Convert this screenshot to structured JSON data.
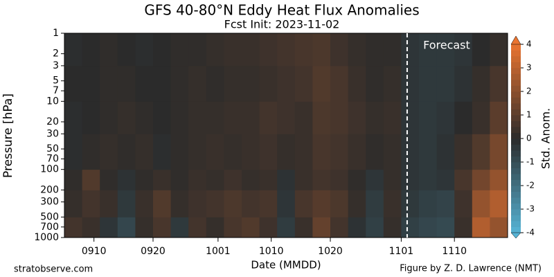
{
  "chart_data": {
    "type": "contourf",
    "title": "GFS 40-80°N Eddy Heat Flux Anomalies",
    "subtitle": "Fcst Init: 2023-11-02",
    "xlabel": "Date (MMDD)",
    "ylabel": "Pressure [hPa]",
    "x": [
      "0905",
      "0908",
      "0911",
      "0914",
      "0917",
      "0920",
      "0923",
      "0926",
      "0929",
      "1002",
      "1005",
      "1008",
      "1011",
      "1014",
      "1017",
      "1020",
      "1023",
      "1026",
      "1029",
      "1101",
      "1104",
      "1107",
      "1110",
      "1113",
      "1116"
    ],
    "xlim": [
      "0905",
      "1119"
    ],
    "xticks": [
      "0910",
      "0920",
      "1001",
      "1010",
      "1020",
      "1101",
      "1110"
    ],
    "levels": [
      1000,
      500,
      200,
      100,
      30,
      10,
      3,
      1
    ],
    "ylim": [
      1000,
      1
    ],
    "yscale": "log",
    "yticks": [
      1,
      2,
      3,
      5,
      7,
      10,
      20,
      30,
      50,
      70,
      100,
      200,
      300,
      500,
      700,
      1000
    ],
    "z": [
      [
        0.5,
        0.3,
        -0.3,
        -0.8,
        0.2,
        0.6,
        -0.4,
        0.5,
        0.2,
        0.6,
        0.8,
        0.4,
        -0.5,
        0.3,
        1.2,
        0.5,
        -0.2,
        -0.6,
        0.2,
        -0.6,
        -0.8,
        -0.9,
        0.3,
        2.8,
        2.2
      ],
      [
        0.2,
        0.5,
        0.3,
        -0.4,
        0.3,
        0.8,
        0.2,
        0.4,
        0.5,
        0.7,
        0.5,
        0.6,
        -0.3,
        0.6,
        0.9,
        0.7,
        0.2,
        -0.5,
        0.3,
        -0.4,
        -0.6,
        -0.7,
        0.4,
        2.2,
        2.8
      ],
      [
        0.1,
        0.8,
        0.1,
        -0.2,
        0.1,
        0.3,
        0.1,
        0.3,
        0.2,
        0.4,
        0.2,
        0.3,
        -0.2,
        0.3,
        0.5,
        0.4,
        0.1,
        -0.3,
        0.2,
        -0.3,
        -0.4,
        -0.3,
        0.6,
        1.5,
        2.2
      ],
      [
        -0.1,
        0.1,
        0.2,
        0.1,
        0.2,
        -0.1,
        0.1,
        0.2,
        0.3,
        0.2,
        0.3,
        0.4,
        0.2,
        0.3,
        0.6,
        0.5,
        0.3,
        0.1,
        0.2,
        -0.3,
        -0.4,
        -0.2,
        0.3,
        0.8,
        1.6
      ],
      [
        -0.1,
        0,
        0.1,
        0.2,
        0.1,
        0,
        0.1,
        0.2,
        0.2,
        0.3,
        0.3,
        0.5,
        0.4,
        0.3,
        0.7,
        0.6,
        0.4,
        0.2,
        0.3,
        -0.3,
        -0.4,
        -0.3,
        0,
        0.3,
        1.0
      ],
      [
        0,
        0,
        0.1,
        0.1,
        0,
        0,
        0.1,
        0.2,
        0.1,
        0.2,
        0.2,
        0.3,
        0.4,
        0.5,
        0.8,
        0.6,
        0.3,
        0.1,
        0.2,
        -0.3,
        -0.4,
        -0.4,
        -0.2,
        0.2,
        0.6
      ],
      [
        -0.1,
        0,
        0.1,
        0,
        -0.1,
        0,
        0.1,
        0.1,
        0.2,
        0.3,
        0.3,
        0.4,
        0.5,
        0.6,
        0.7,
        0.4,
        0.2,
        0.1,
        0.1,
        -0.3,
        -0.4,
        -0.4,
        -0.3,
        0,
        0.2
      ]
    ],
    "zlim": [
      -4,
      4
    ],
    "colormap": [
      "#56b4d6",
      "#2b2b2b",
      "#ea7430"
    ],
    "forecast_start": "1102",
    "forecast_label": "Forecast",
    "colorbar": {
      "label": "Std. Anom.",
      "ticks": [
        -4,
        -3,
        -2,
        -1,
        0,
        1,
        2,
        3,
        4
      ]
    },
    "footer_left": "stratobserve.com",
    "footer_right": "Figure by Z. D. Lawrence (NMT)"
  }
}
